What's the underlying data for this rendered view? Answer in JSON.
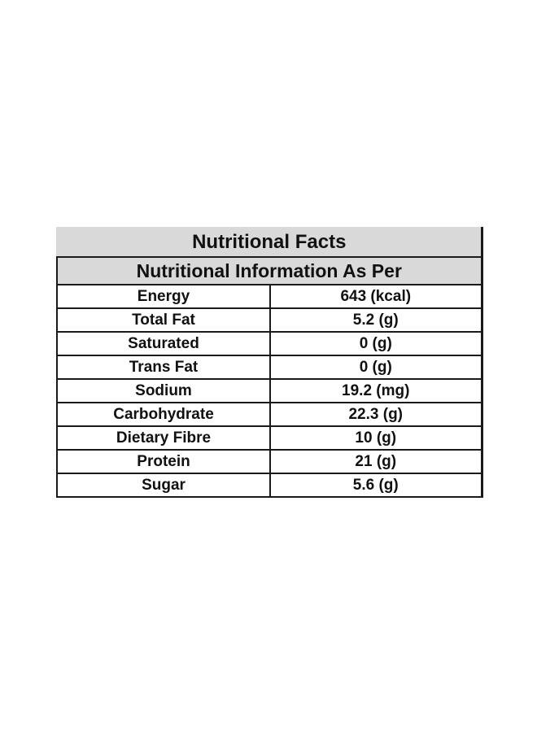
{
  "table": {
    "title": "Nutritional Facts",
    "subtitle": "Nutritional Information As Per",
    "rows": [
      {
        "label": "Energy",
        "value": "643 (kcal)"
      },
      {
        "label": "Total Fat",
        "value": "5.2 (g)"
      },
      {
        "label": "Saturated",
        "value": "0 (g)"
      },
      {
        "label": "Trans Fat",
        "value": "0 (g)"
      },
      {
        "label": "Sodium",
        "value": "19.2 (mg)"
      },
      {
        "label": "Carbohydrate",
        "value": "22.3 (g)"
      },
      {
        "label": "Dietary Fibre",
        "value": "10 (g)"
      },
      {
        "label": "Protein",
        "value": "21 (g)"
      },
      {
        "label": "Sugar",
        "value": "5.6 (g)"
      }
    ],
    "colors": {
      "header_background": "#d9d9d9",
      "border": "#1a1a1a",
      "text": "#111111"
    }
  }
}
